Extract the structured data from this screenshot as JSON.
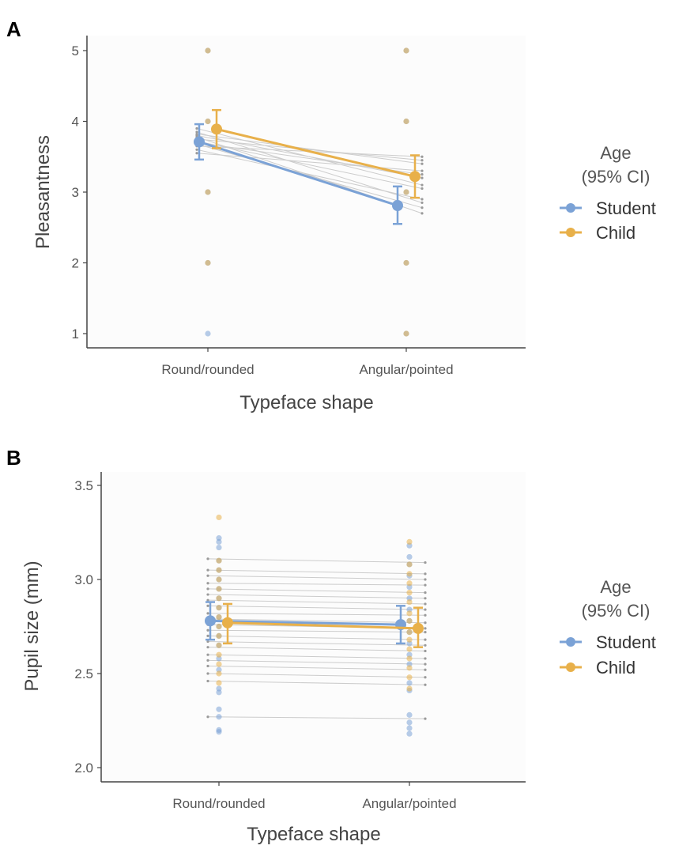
{
  "colors": {
    "student": "#7ba2d6",
    "child": "#e8b04a",
    "subject_line": "#cccccc",
    "subject_dot": "#9a9a9a"
  },
  "chart_data": [
    {
      "panel_label": "A",
      "type": "line",
      "title": "",
      "xlabel": "Typeface shape",
      "ylabel": "Pleasantness",
      "categories": [
        "Round/rounded",
        "Angular/pointed"
      ],
      "ylim": [
        1,
        5
      ],
      "yticks": [
        1,
        2,
        3,
        4,
        5
      ],
      "ytick_labels": [
        "1",
        "2",
        "3",
        "4",
        "5"
      ],
      "grid": false,
      "legend": {
        "title_line1": "Age",
        "title_line2": "(95% CI)",
        "placement": "right",
        "entries": [
          "Student",
          "Child"
        ]
      },
      "series": [
        {
          "name": "Student",
          "color_key": "student",
          "means": [
            3.71,
            2.81
          ],
          "ci_low": [
            3.46,
            2.55
          ],
          "ci_high": [
            3.96,
            3.08
          ],
          "raw_points": [
            [
              1,
              2,
              3,
              4,
              5
            ],
            [
              1,
              2,
              3,
              4,
              5
            ]
          ]
        },
        {
          "name": "Child",
          "color_key": "child",
          "means": [
            3.89,
            3.22
          ],
          "ci_low": [
            3.62,
            2.92
          ],
          "ci_high": [
            4.16,
            3.52
          ],
          "raw_points": [
            [
              2,
              3,
              4,
              5
            ],
            [
              1,
              2,
              3,
              4,
              5
            ]
          ]
        }
      ],
      "subject_lines": [
        [
          3.55,
          3.3
        ],
        [
          3.65,
          3.5
        ],
        [
          3.72,
          3.05
        ],
        [
          3.78,
          2.7
        ],
        [
          3.82,
          3.4
        ],
        [
          3.9,
          3.1
        ],
        [
          3.6,
          2.9
        ],
        [
          3.7,
          3.25
        ],
        [
          3.85,
          2.85
        ],
        [
          3.75,
          3.45
        ],
        [
          3.68,
          2.78
        ],
        [
          3.8,
          3.2
        ]
      ]
    },
    {
      "panel_label": "B",
      "type": "line",
      "title": "",
      "xlabel": "Typeface shape",
      "ylabel": "Pupil size (mm)",
      "categories": [
        "Round/rounded",
        "Angular/pointed"
      ],
      "ylim": [
        2.0,
        3.5
      ],
      "yticks": [
        2.0,
        2.5,
        3.0,
        3.5
      ],
      "ytick_labels": [
        "2.0",
        "2.5",
        "3.0",
        "3.5"
      ],
      "grid": false,
      "legend": {
        "title_line1": "Age",
        "title_line2": "(95% CI)",
        "placement": "right",
        "entries": [
          "Student",
          "Child"
        ]
      },
      "series": [
        {
          "name": "Student",
          "color_key": "student",
          "means": [
            2.78,
            2.76
          ],
          "ci_low": [
            2.68,
            2.66
          ],
          "ci_high": [
            2.88,
            2.86
          ],
          "raw_points": [
            [
              2.19,
              2.2,
              2.27,
              2.31,
              2.4,
              2.42,
              2.52,
              2.58,
              2.65,
              2.7,
              2.75,
              2.8,
              2.85,
              2.9,
              2.95,
              3.0,
              3.05,
              3.1,
              3.17,
              3.2,
              3.22
            ],
            [
              2.18,
              2.21,
              2.24,
              2.28,
              2.41,
              2.45,
              2.55,
              2.6,
              2.66,
              2.72,
              2.78,
              2.84,
              2.9,
              2.96,
              3.02,
              3.08,
              3.12,
              3.18
            ]
          ]
        },
        {
          "name": "Child",
          "color_key": "child",
          "means": [
            2.77,
            2.74
          ],
          "ci_low": [
            2.66,
            2.64
          ],
          "ci_high": [
            2.87,
            2.85
          ],
          "raw_points": [
            [
              2.45,
              2.5,
              2.55,
              2.6,
              2.65,
              2.7,
              2.75,
              2.8,
              2.85,
              2.9,
              2.95,
              3.0,
              3.05,
              3.1,
              3.33
            ],
            [
              2.42,
              2.48,
              2.53,
              2.58,
              2.63,
              2.68,
              2.72,
              2.78,
              2.82,
              2.88,
              2.93,
              2.98,
              3.03,
              3.08,
              3.2
            ]
          ]
        }
      ],
      "subject_lines": [
        [
          3.11,
          3.09
        ],
        [
          3.05,
          3.03
        ],
        [
          3.02,
          3.0
        ],
        [
          2.98,
          2.97
        ],
        [
          2.95,
          2.93
        ],
        [
          2.92,
          2.9
        ],
        [
          2.89,
          2.87
        ],
        [
          2.86,
          2.84
        ],
        [
          2.82,
          2.81
        ],
        [
          2.79,
          2.77
        ],
        [
          2.76,
          2.74
        ],
        [
          2.73,
          2.72
        ],
        [
          2.7,
          2.68
        ],
        [
          2.67,
          2.65
        ],
        [
          2.64,
          2.62
        ],
        [
          2.6,
          2.58
        ],
        [
          2.57,
          2.55
        ],
        [
          2.54,
          2.52
        ],
        [
          2.5,
          2.48
        ],
        [
          2.46,
          2.44
        ],
        [
          2.27,
          2.26
        ]
      ]
    }
  ]
}
